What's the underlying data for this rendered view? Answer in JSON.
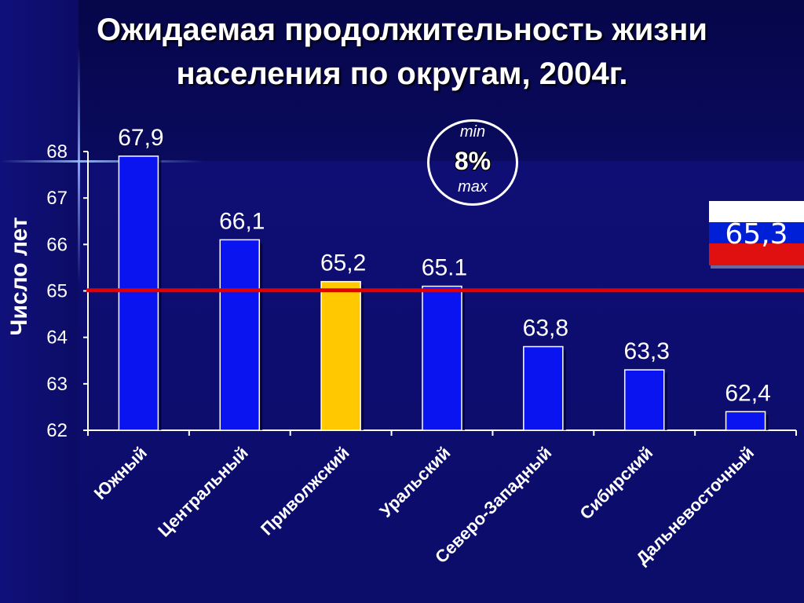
{
  "title_line1": "Ожидаемая продолжительность жизни",
  "title_line2": "населения по округам, 2004г.",
  "badge": {
    "min": "min",
    "pct": "8%",
    "max": "max"
  },
  "flag_label": "65,3",
  "colors": {
    "bar": "#0a14f0",
    "highlight": "#ffc800",
    "avg_line": "#e00000"
  },
  "chart_data": {
    "type": "bar",
    "ylabel": "Число лет",
    "ylim": [
      62,
      68
    ],
    "yticks": [
      "62",
      "63",
      "64",
      "65",
      "66",
      "67",
      "68"
    ],
    "categories": [
      "Южный",
      "Центральный",
      "Приволжский",
      "Уральский",
      "Северо-Западный",
      "Сибирский",
      "Дальневосточный"
    ],
    "values": [
      67.9,
      66.1,
      65.2,
      65.1,
      63.8,
      63.3,
      62.4
    ],
    "value_labels": [
      "67,9",
      "66,1",
      "65,2",
      "65.1",
      "63,8",
      "63,3",
      "62,4"
    ],
    "highlight_index": 2,
    "reference_line": {
      "value": 65.3
    }
  }
}
